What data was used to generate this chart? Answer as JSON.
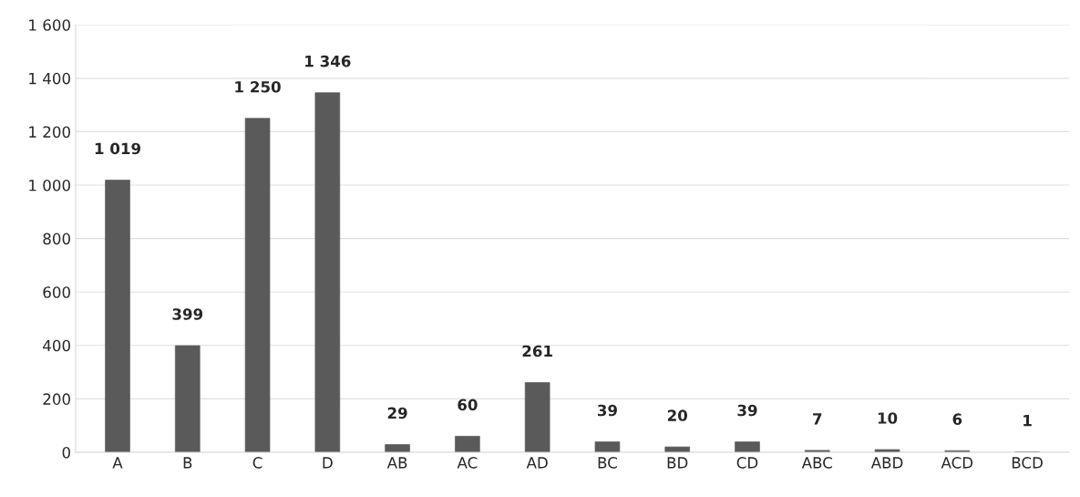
{
  "chart_data": {
    "type": "bar",
    "categories": [
      "A",
      "B",
      "C",
      "D",
      "AB",
      "AC",
      "AD",
      "BC",
      "BD",
      "CD",
      "ABC",
      "ABD",
      "ACD",
      "BCD"
    ],
    "values": [
      1019,
      399,
      1250,
      1346,
      29,
      60,
      261,
      39,
      20,
      39,
      7,
      10,
      6,
      1
    ],
    "value_labels": [
      "1 019",
      "399",
      "1 250",
      "1 346",
      "29",
      "60",
      "261",
      "39",
      "20",
      "39",
      "7",
      "10",
      "6",
      "1"
    ],
    "color": "#5a5a5a",
    "ylim": [
      0,
      1600
    ],
    "yticks": [
      0,
      200,
      400,
      600,
      800,
      {
        "value": 1000,
        "label": "1 000"
      },
      {
        "value": 1200,
        "label": "1 200"
      },
      {
        "value": 1400,
        "label": "1 400"
      },
      {
        "value": 1600,
        "label": "1 600"
      }
    ],
    "grid": "y"
  }
}
